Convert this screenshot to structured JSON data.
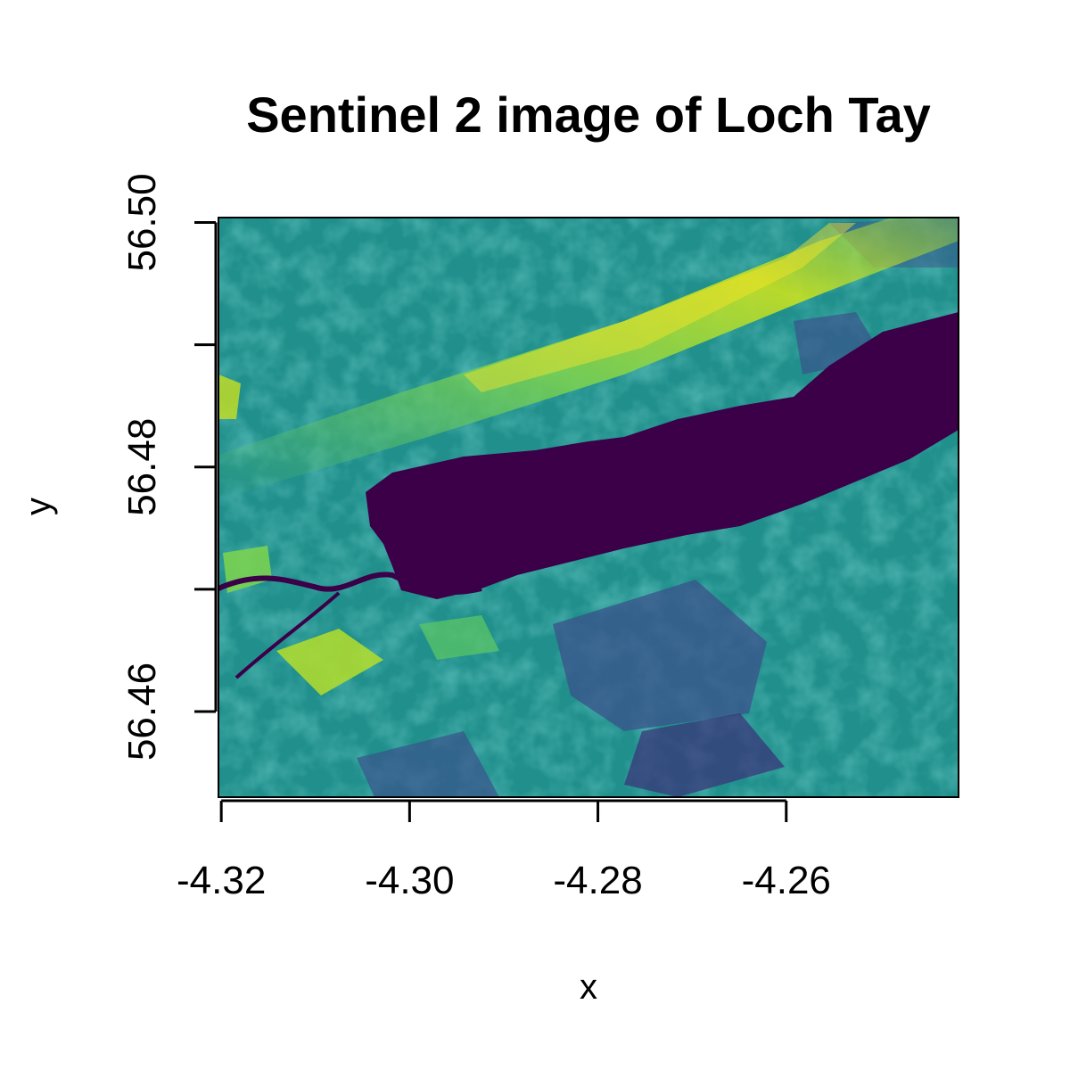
{
  "chart_data": {
    "type": "heatmap",
    "title": "Sentinel 2 image of Loch Tay",
    "xlabel": "x",
    "ylabel": "y",
    "xlim": [
      -4.3203,
      -4.2417
    ],
    "ylim": [
      56.453,
      56.5004
    ],
    "x_ticks": [
      -4.32,
      -4.3,
      -4.28,
      -4.26
    ],
    "x_tick_labels": [
      "-4.32",
      "-4.30",
      "-4.28",
      "-4.26"
    ],
    "y_ticks": [
      56.46,
      56.47,
      56.48,
      56.49,
      56.5
    ],
    "y_tick_labels": [
      "56.46",
      "",
      "56.48",
      "",
      "56.50"
    ],
    "colormap": "viridis",
    "colors": {
      "water": "#3b0048",
      "low": "#3b528b",
      "mid": "#21908c",
      "high": "#5ec962",
      "peak": "#fde725"
    },
    "grid": false,
    "legend": "none",
    "annotations": []
  }
}
